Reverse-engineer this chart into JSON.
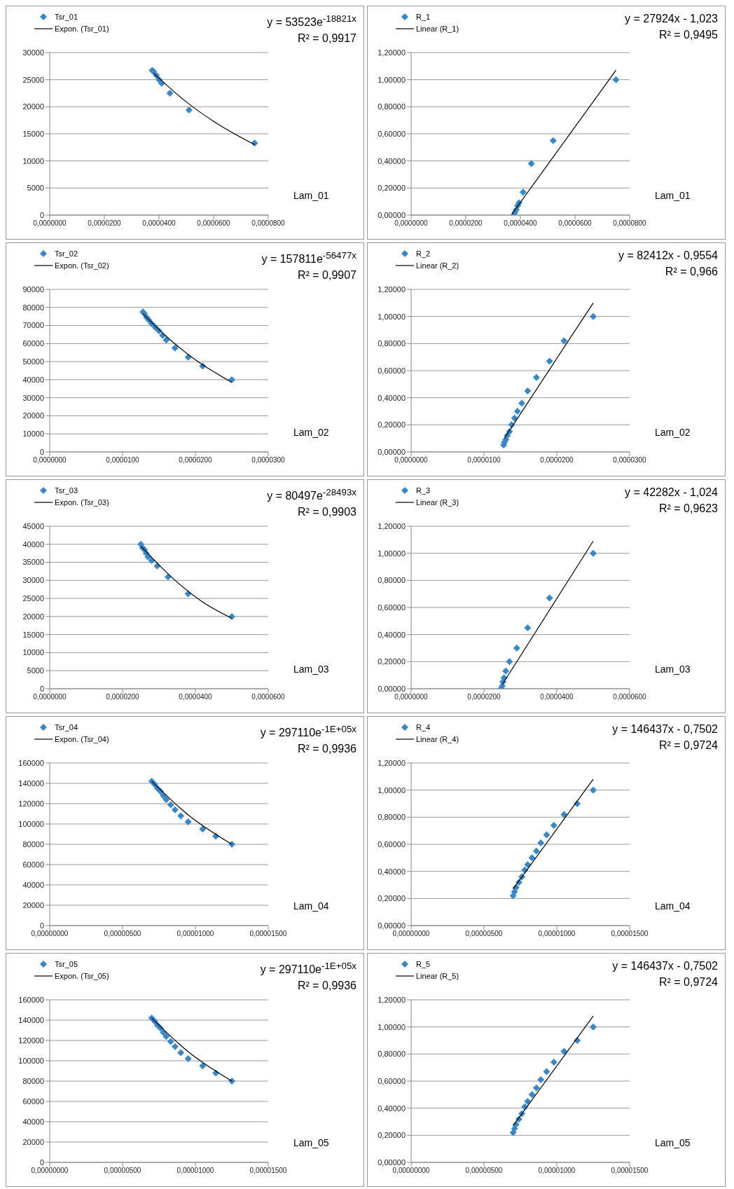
{
  "chart_data": [
    {
      "type": "scatter",
      "xlabel": "Lam_01",
      "legend": "top left",
      "grid": "y",
      "annotations": [
        "y = 53523e$^{-18821x}$",
        "R² = 0,9917"
      ],
      "xlim": [
        0,
        8e-05
      ],
      "xticks": [
        {
          "value": 0,
          "label": "0,0000000"
        },
        {
          "value": 2e-05,
          "label": "0,0000200"
        },
        {
          "value": 4e-05,
          "label": "0,0000400"
        },
        {
          "value": 6e-05,
          "label": "0,0000600"
        },
        {
          "value": 8e-05,
          "label": "0,0000800"
        }
      ],
      "ylim": [
        0,
        30000
      ],
      "yticks": [
        0,
        5000,
        10000,
        15000,
        20000,
        25000,
        30000
      ],
      "series": [
        {
          "name": "Tsr_01",
          "marker": "diamond",
          "color": "#3a87c8",
          "x": [
            3.75e-05,
            3.8e-05,
            3.9e-05,
            4e-05,
            4.1e-05,
            4.4e-05,
            5.1e-05,
            7.5e-05
          ],
          "values": [
            26700,
            26500,
            25800,
            25000,
            24300,
            22500,
            19400,
            13300
          ]
        },
        {
          "name": "Expon. (Tsr_01)",
          "type": "line",
          "marker": "none",
          "color": "#000000",
          "x": [
            3.8e-05,
            5e-05,
            6e-05,
            7.5e-05
          ],
          "values": [
            26200,
            20900,
            17300,
            13000
          ]
        }
      ]
    },
    {
      "type": "scatter",
      "xlabel": "Lam_01",
      "legend": "top left",
      "grid": "y",
      "annotations": [
        "y = 27924x - 1,023",
        "R² = 0,9495"
      ],
      "xlim": [
        0,
        8e-05
      ],
      "xticks": [
        {
          "value": 0,
          "label": "0,0000000"
        },
        {
          "value": 2e-05,
          "label": "0,0000200"
        },
        {
          "value": 4e-05,
          "label": "0,0000400"
        },
        {
          "value": 6e-05,
          "label": "0,0000600"
        },
        {
          "value": 8e-05,
          "label": "0,0000800"
        }
      ],
      "ylim": [
        0,
        1.2
      ],
      "yticks": [
        {
          "value": 0,
          "label": "0,00000"
        },
        {
          "value": 0.2,
          "label": "0,20000"
        },
        {
          "value": 0.4,
          "label": "0,40000"
        },
        {
          "value": 0.6,
          "label": "0,60000"
        },
        {
          "value": 0.8,
          "label": "0,80000"
        },
        {
          "value": 1,
          "label": "1,00000"
        },
        {
          "value": 1.2,
          "label": "1,20000"
        }
      ],
      "series": [
        {
          "name": "R_1",
          "marker": "diamond",
          "color": "#3a87c8",
          "x": [
            3.75e-05,
            3.8e-05,
            3.85e-05,
            3.9e-05,
            3.95e-05,
            4.1e-05,
            4.4e-05,
            5.2e-05,
            7.5e-05
          ],
          "values": [
            0,
            0.02,
            0.04,
            0.07,
            0.09,
            0.17,
            0.38,
            0.55,
            1
          ]
        },
        {
          "name": "Linear (R_1)",
          "type": "line",
          "marker": "none",
          "color": "#000000",
          "x": [
            3.7e-05,
            7.5e-05
          ],
          "values": [
            0.01,
            1.07
          ]
        }
      ]
    },
    {
      "type": "scatter",
      "xlabel": "Lam_02",
      "legend": "top left",
      "grid": "y",
      "annotations": [
        "y = 157811e$^{-56477x}$",
        "R² = 0,9907"
      ],
      "xlim": [
        0,
        3e-05
      ],
      "xticks": [
        {
          "value": 0,
          "label": "0,0000000"
        },
        {
          "value": 1e-05,
          "label": "0,0000100"
        },
        {
          "value": 2e-05,
          "label": "0,0000200"
        },
        {
          "value": 3e-05,
          "label": "0,0000300"
        }
      ],
      "ylim": [
        0,
        90000
      ],
      "yticks": [
        0,
        10000,
        20000,
        30000,
        40000,
        50000,
        60000,
        70000,
        80000,
        90000
      ],
      "series": [
        {
          "name": "Tsr_02",
          "marker": "diamond",
          "color": "#3a87c8",
          "x": [
            1.28e-05,
            1.3e-05,
            1.33e-05,
            1.36e-05,
            1.4e-05,
            1.45e-05,
            1.5e-05,
            1.55e-05,
            1.6e-05,
            1.72e-05,
            1.9e-05,
            2.1e-05,
            2.5e-05
          ],
          "values": [
            77500,
            76500,
            74500,
            73000,
            71000,
            69000,
            67000,
            64500,
            62000,
            57500,
            52500,
            47500,
            40000
          ]
        },
        {
          "name": "Expon. (Tsr_02)",
          "type": "line",
          "marker": "none",
          "color": "#000000",
          "x": [
            1.28e-05,
            1.6e-05,
            2e-05,
            2.5e-05
          ],
          "values": [
            76500,
            64000,
            51000,
            38500
          ]
        }
      ]
    },
    {
      "type": "scatter",
      "xlabel": "Lam_02",
      "legend": "top left",
      "grid": "y",
      "annotations": [
        "y = 82412x - 0,9554",
        "R² = 0,966"
      ],
      "xlim": [
        0,
        3e-05
      ],
      "xticks": [
        {
          "value": 0,
          "label": "0,0000000"
        },
        {
          "value": 1e-05,
          "label": "0,0000100"
        },
        {
          "value": 2e-05,
          "label": "0,0000200"
        },
        {
          "value": 3e-05,
          "label": "0,0000300"
        }
      ],
      "ylim": [
        0,
        1.2
      ],
      "yticks": [
        {
          "value": 0,
          "label": "0,00000"
        },
        {
          "value": 0.2,
          "label": "0,20000"
        },
        {
          "value": 0.4,
          "label": "0,40000"
        },
        {
          "value": 0.6,
          "label": "0,60000"
        },
        {
          "value": 0.8,
          "label": "0,80000"
        },
        {
          "value": 1,
          "label": "1,00000"
        },
        {
          "value": 1.2,
          "label": "1,20000"
        }
      ],
      "series": [
        {
          "name": "R_2",
          "marker": "diamond",
          "color": "#3a87c8",
          "x": [
            1.27e-05,
            1.28e-05,
            1.3e-05,
            1.32e-05,
            1.35e-05,
            1.38e-05,
            1.42e-05,
            1.46e-05,
            1.52e-05,
            1.6e-05,
            1.72e-05,
            1.9e-05,
            2.1e-05,
            2.5e-05
          ],
          "values": [
            0.05,
            0.07,
            0.09,
            0.12,
            0.15,
            0.2,
            0.25,
            0.3,
            0.36,
            0.45,
            0.55,
            0.67,
            0.82,
            1
          ]
        },
        {
          "name": "Linear (R_2)",
          "type": "line",
          "marker": "none",
          "color": "#000000",
          "x": [
            1.28e-05,
            2.5e-05
          ],
          "values": [
            0.1,
            1.1
          ]
        }
      ]
    },
    {
      "type": "scatter",
      "xlabel": "Lam_03",
      "legend": "top left",
      "grid": "y",
      "annotations": [
        "y = 80497e$^{-28493x}$",
        "R² = 0,9903"
      ],
      "xlim": [
        0,
        6e-05
      ],
      "xticks": [
        {
          "value": 0,
          "label": "0,0000000"
        },
        {
          "value": 2e-05,
          "label": "0,0000200"
        },
        {
          "value": 4e-05,
          "label": "0,0000400"
        },
        {
          "value": 6e-05,
          "label": "0,0000600"
        }
      ],
      "ylim": [
        0,
        45000
      ],
      "yticks": [
        0,
        5000,
        10000,
        15000,
        20000,
        25000,
        30000,
        35000,
        40000,
        45000
      ],
      "series": [
        {
          "name": "Tsr_03",
          "marker": "diamond",
          "color": "#3a87c8",
          "x": [
            2.5e-05,
            2.55e-05,
            2.6e-05,
            2.65e-05,
            2.7e-05,
            2.8e-05,
            2.95e-05,
            3.25e-05,
            3.8e-05,
            5e-05
          ],
          "values": [
            40000,
            39000,
            38500,
            37500,
            36500,
            35500,
            34000,
            31000,
            26300,
            20000
          ]
        },
        {
          "name": "Expon. (Tsr_03)",
          "type": "line",
          "marker": "none",
          "color": "#000000",
          "x": [
            2.5e-05,
            3.5e-05,
            4.2e-05,
            5e-05
          ],
          "values": [
            39500,
            29500,
            24000,
            19500
          ]
        }
      ]
    },
    {
      "type": "scatter",
      "xlabel": "Lam_03",
      "legend": "top left",
      "grid": "y",
      "annotations": [
        "y = 42282x - 1,024",
        "R² = 0,9623"
      ],
      "xlim": [
        0,
        6e-05
      ],
      "xticks": [
        {
          "value": 0,
          "label": "0,0000000"
        },
        {
          "value": 2e-05,
          "label": "0,0000200"
        },
        {
          "value": 4e-05,
          "label": "0,0000400"
        },
        {
          "value": 6e-05,
          "label": "0,0000600"
        }
      ],
      "ylim": [
        0,
        1.2
      ],
      "yticks": [
        {
          "value": 0,
          "label": "0,00000"
        },
        {
          "value": 0.2,
          "label": "0,20000"
        },
        {
          "value": 0.4,
          "label": "0,40000"
        },
        {
          "value": 0.6,
          "label": "0,60000"
        },
        {
          "value": 0.8,
          "label": "0,80000"
        },
        {
          "value": 1,
          "label": "1,00000"
        },
        {
          "value": 1.2,
          "label": "1,20000"
        }
      ],
      "series": [
        {
          "name": "R_3",
          "marker": "diamond",
          "color": "#3a87c8",
          "x": [
            2.47e-05,
            2.5e-05,
            2.52e-05,
            2.55e-05,
            2.6e-05,
            2.7e-05,
            2.9e-05,
            3.2e-05,
            3.8e-05,
            5e-05
          ],
          "values": [
            0,
            0.02,
            0.05,
            0.08,
            0.13,
            0.2,
            0.3,
            0.45,
            0.67,
            1
          ]
        },
        {
          "name": "Linear (R_3)",
          "type": "line",
          "marker": "none",
          "color": "#000000",
          "x": [
            2.5e-05,
            5e-05
          ],
          "values": [
            0.03,
            1.09
          ]
        }
      ]
    },
    {
      "type": "scatter",
      "xlabel": "Lam_04",
      "legend": "top left",
      "grid": "y",
      "annotations": [
        "y = 297110e$^{-1E+05x}$",
        "R² = 0,9936"
      ],
      "xlim": [
        0,
        1.5e-05
      ],
      "xticks": [
        {
          "value": 0,
          "label": "0,00000000"
        },
        {
          "value": 5e-06,
          "label": "0,00000500"
        },
        {
          "value": 1e-05,
          "label": "0,00001000"
        },
        {
          "value": 1.5e-05,
          "label": "0,00001500"
        }
      ],
      "ylim": [
        0,
        160000
      ],
      "yticks": [
        0,
        20000,
        40000,
        60000,
        80000,
        100000,
        120000,
        140000,
        160000
      ],
      "series": [
        {
          "name": "Tsr_04",
          "marker": "diamond",
          "color": "#3a87c8",
          "x": [
            7e-06,
            7.2e-06,
            7.4e-06,
            7.6e-06,
            7.8e-06,
            8e-06,
            8.3e-06,
            8.6e-06,
            9e-06,
            9.5e-06,
            1.05e-05,
            1.14e-05,
            1.25e-05
          ],
          "values": [
            142000,
            139000,
            135000,
            132000,
            128000,
            124000,
            119000,
            114000,
            108000,
            102000,
            95000,
            88000,
            80000
          ]
        },
        {
          "name": "Expon. (Tsr_04)",
          "type": "line",
          "marker": "none",
          "color": "#000000",
          "x": [
            7e-06,
            9.5e-06,
            1.25e-05
          ],
          "values": [
            142000,
            109000,
            80000
          ]
        }
      ]
    },
    {
      "type": "scatter",
      "xlabel": "Lam_04",
      "legend": "top left",
      "grid": "y",
      "annotations": [
        "y = 146437x - 0,7502",
        "R² = 0,9724"
      ],
      "xlim": [
        0,
        1.5e-05
      ],
      "xticks": [
        {
          "value": 0,
          "label": "0,00000000"
        },
        {
          "value": 5e-06,
          "label": "0,00000500"
        },
        {
          "value": 1e-05,
          "label": "0,00001000"
        },
        {
          "value": 1.5e-05,
          "label": "0,00001500"
        }
      ],
      "ylim": [
        0,
        1.2
      ],
      "yticks": [
        {
          "value": 0,
          "label": "0,00000"
        },
        {
          "value": 0.2,
          "label": "0,20000"
        },
        {
          "value": 0.4,
          "label": "0,40000"
        },
        {
          "value": 0.6,
          "label": "0,60000"
        },
        {
          "value": 0.8,
          "label": "0,80000"
        },
        {
          "value": 1,
          "label": "1,00000"
        },
        {
          "value": 1.2,
          "label": "1,20000"
        }
      ],
      "series": [
        {
          "name": "R_4",
          "marker": "diamond",
          "color": "#3a87c8",
          "x": [
            7e-06,
            7.1e-06,
            7.2e-06,
            7.4e-06,
            7.6e-06,
            7.8e-06,
            8e-06,
            8.3e-06,
            8.6e-06,
            8.9e-06,
            9.3e-06,
            9.8e-06,
            1.05e-05,
            1.14e-05,
            1.25e-05
          ],
          "values": [
            0.22,
            0.25,
            0.28,
            0.32,
            0.36,
            0.41,
            0.45,
            0.5,
            0.55,
            0.61,
            0.67,
            0.74,
            0.82,
            0.9,
            1
          ]
        },
        {
          "name": "Linear (R_4)",
          "type": "line",
          "marker": "none",
          "color": "#000000",
          "x": [
            7e-06,
            1.25e-05
          ],
          "values": [
            0.27,
            1.08
          ]
        }
      ]
    },
    {
      "type": "scatter",
      "xlabel": "Lam_05",
      "legend": "top left",
      "grid": "y",
      "annotations": [
        "y = 297110e$^{-1E+05x}$",
        "R² = 0,9936"
      ],
      "xlim": [
        0,
        1.5e-05
      ],
      "xticks": [
        {
          "value": 0,
          "label": "0,00000000"
        },
        {
          "value": 5e-06,
          "label": "0,00000500"
        },
        {
          "value": 1e-05,
          "label": "0,00001000"
        },
        {
          "value": 1.5e-05,
          "label": "0,00001500"
        }
      ],
      "ylim": [
        0,
        160000
      ],
      "yticks": [
        0,
        20000,
        40000,
        60000,
        80000,
        100000,
        120000,
        140000,
        160000
      ],
      "series": [
        {
          "name": "Tsr_05",
          "marker": "diamond",
          "color": "#3a87c8",
          "x": [
            7e-06,
            7.2e-06,
            7.4e-06,
            7.6e-06,
            7.8e-06,
            8e-06,
            8.3e-06,
            8.6e-06,
            9e-06,
            9.5e-06,
            1.05e-05,
            1.14e-05,
            1.25e-05
          ],
          "values": [
            142000,
            139000,
            135000,
            132000,
            128000,
            124000,
            119000,
            114000,
            108000,
            102000,
            95000,
            88000,
            80000
          ]
        },
        {
          "name": "Expon. (Tsr_05)",
          "type": "line",
          "marker": "none",
          "color": "#000000",
          "x": [
            7e-06,
            9.5e-06,
            1.25e-05
          ],
          "values": [
            142000,
            109000,
            80000
          ]
        }
      ]
    },
    {
      "type": "scatter",
      "xlabel": "Lam_05",
      "legend": "top left",
      "grid": "y",
      "annotations": [
        "y = 146437x - 0,7502",
        "R² = 0,9724"
      ],
      "xlim": [
        0,
        1.5e-05
      ],
      "xticks": [
        {
          "value": 0,
          "label": "0,00000000"
        },
        {
          "value": 5e-06,
          "label": "0,00000500"
        },
        {
          "value": 1e-05,
          "label": "0,00001000"
        },
        {
          "value": 1.5e-05,
          "label": "0,00001500"
        }
      ],
      "ylim": [
        0,
        1.2
      ],
      "yticks": [
        {
          "value": 0,
          "label": "0,00000"
        },
        {
          "value": 0.2,
          "label": "0,20000"
        },
        {
          "value": 0.4,
          "label": "0,40000"
        },
        {
          "value": 0.6,
          "label": "0,60000"
        },
        {
          "value": 0.8,
          "label": "0,80000"
        },
        {
          "value": 1,
          "label": "1,00000"
        },
        {
          "value": 1.2,
          "label": "1,20000"
        }
      ],
      "series": [
        {
          "name": "R_5",
          "marker": "diamond",
          "color": "#3a87c8",
          "x": [
            7e-06,
            7.1e-06,
            7.2e-06,
            7.4e-06,
            7.6e-06,
            7.8e-06,
            8e-06,
            8.3e-06,
            8.6e-06,
            8.9e-06,
            9.3e-06,
            9.8e-06,
            1.05e-05,
            1.14e-05,
            1.25e-05
          ],
          "values": [
            0.22,
            0.25,
            0.28,
            0.32,
            0.36,
            0.41,
            0.45,
            0.5,
            0.55,
            0.61,
            0.67,
            0.74,
            0.82,
            0.9,
            1
          ]
        },
        {
          "name": "Linear (R_5)",
          "type": "line",
          "marker": "none",
          "color": "#000000",
          "x": [
            7e-06,
            1.25e-05
          ],
          "values": [
            0.27,
            1.08
          ]
        }
      ]
    }
  ]
}
